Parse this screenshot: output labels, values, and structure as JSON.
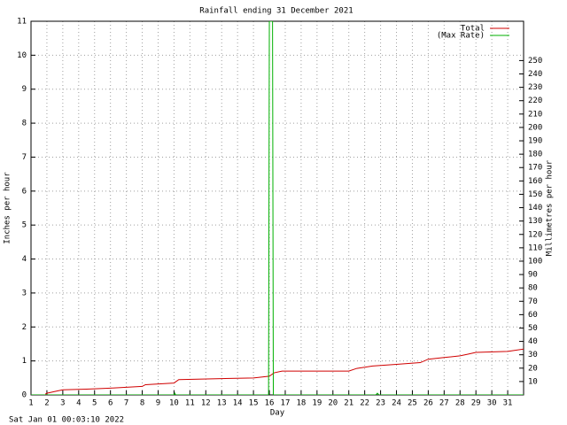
{
  "chart_data": {
    "type": "line",
    "title": "Rainfall ending 31 December 2021",
    "xlabel": "Day",
    "ylabel": "Inches per hour",
    "y2label": "Millimetres per hour",
    "xlim": [
      1,
      32
    ],
    "xticks": [
      1,
      2,
      3,
      4,
      5,
      6,
      7,
      8,
      9,
      10,
      11,
      12,
      13,
      14,
      15,
      16,
      17,
      18,
      19,
      20,
      21,
      22,
      23,
      24,
      25,
      26,
      27,
      28,
      29,
      30,
      31
    ],
    "ylim": [
      0,
      11
    ],
    "yticks": [
      0,
      1,
      2,
      3,
      4,
      5,
      6,
      7,
      8,
      9,
      10,
      11
    ],
    "y2lim": [
      0,
      279.4
    ],
    "y2ticks": [
      10,
      20,
      30,
      40,
      50,
      60,
      70,
      80,
      90,
      100,
      110,
      120,
      130,
      140,
      150,
      160,
      170,
      180,
      190,
      200,
      210,
      220,
      230,
      240,
      250
    ],
    "grid": true,
    "legend": "top-right",
    "series": [
      {
        "name": "Total",
        "color": "#d00000",
        "x": [
          1.9,
          2.0,
          2.7,
          3.0,
          4.5,
          6.0,
          8.0,
          8.2,
          10.0,
          10.3,
          15.0,
          16.0,
          16.3,
          16.8,
          21.0,
          21.5,
          22.5,
          24.0,
          25.5,
          26.0,
          27.0,
          28.0,
          28.5,
          29.0,
          31.0,
          32.0
        ],
        "values": [
          0.02,
          0.05,
          0.12,
          0.15,
          0.17,
          0.2,
          0.25,
          0.3,
          0.35,
          0.45,
          0.5,
          0.55,
          0.65,
          0.7,
          0.7,
          0.78,
          0.85,
          0.9,
          0.95,
          1.05,
          1.1,
          1.15,
          1.2,
          1.25,
          1.28,
          1.35
        ]
      },
      {
        "name": "(Max Rate)",
        "color": "#00b000",
        "x": [
          1,
          10.0,
          10.05,
          10.1,
          15.95,
          16.0,
          16.2,
          16.25,
          22.7,
          22.8,
          22.9,
          32
        ],
        "values": [
          0,
          0,
          0.05,
          0,
          0,
          11,
          11,
          0,
          0,
          0.05,
          0,
          0
        ]
      }
    ]
  },
  "footer": "Sat Jan 01 00:03:10 2022"
}
